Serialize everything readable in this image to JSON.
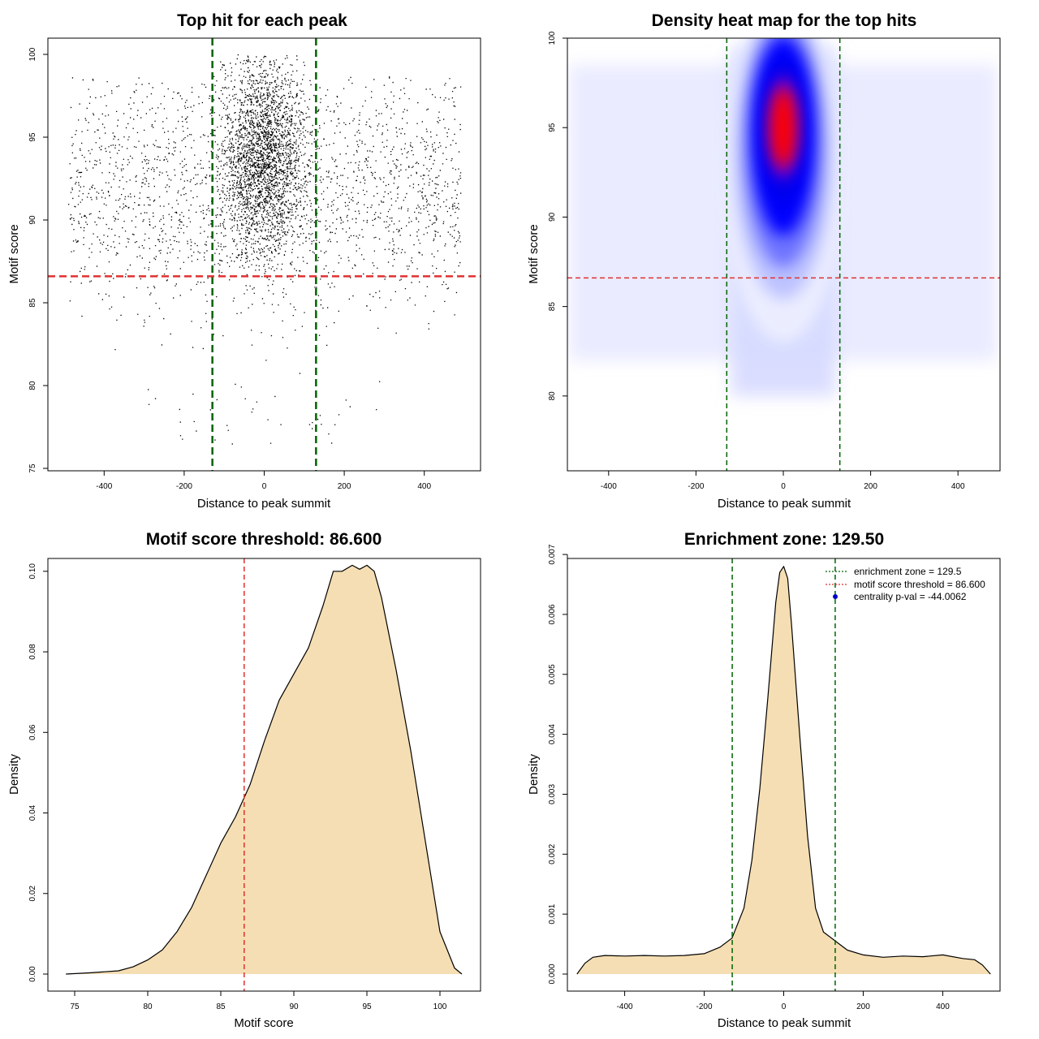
{
  "chart_data": [
    {
      "id": "scatter",
      "type": "scatter",
      "title": "Top hit for each peak",
      "xlabel": "Distance to peak summit",
      "ylabel": "Motif score",
      "xlim": [
        -500,
        500
      ],
      "ylim": [
        75,
        100
      ],
      "xticks": [
        -400,
        -200,
        0,
        200,
        400
      ],
      "yticks": [
        75,
        80,
        85,
        90,
        95,
        100
      ],
      "xtick_labels": [
        "-400",
        "-200",
        "0",
        "200",
        "400"
      ],
      "ytick_labels": [
        "75",
        "80",
        "85",
        "90",
        "95",
        "100"
      ],
      "point_color": "#000000",
      "vlines": [
        -129.5,
        129.5
      ],
      "hline": 86.6,
      "vline_color": "#006400",
      "hline_color": "#e03030"
    },
    {
      "id": "heatmap",
      "type": "heatmap",
      "title": "Density heat map for the top hits",
      "xlabel": "Distance to peak summit",
      "ylabel": "Motif score",
      "xlim": [
        -500,
        500
      ],
      "ylim": [
        76,
        100
      ],
      "xticks": [
        -400,
        -200,
        0,
        200,
        400
      ],
      "yticks": [
        80,
        85,
        90,
        95,
        100
      ],
      "xtick_labels": [
        "-400",
        "-200",
        "0",
        "200",
        "400"
      ],
      "ytick_labels": [
        "80",
        "85",
        "90",
        "95",
        "100"
      ],
      "vlines": [
        -129.5,
        129.5
      ],
      "hline": 86.6,
      "hot_spot": {
        "x": 0,
        "y": 95
      },
      "colors": [
        "#ffffff",
        "#0000ff",
        "#ff0000"
      ],
      "vline_color": "#006400",
      "hline_color": "#e03030"
    },
    {
      "id": "density_score",
      "type": "area",
      "title": "Motif score threshold: 86.600",
      "xlabel": "Motif score",
      "ylabel": "Density",
      "xlim": [
        74,
        102
      ],
      "ylim": [
        0,
        0.105
      ],
      "xticks": [
        75,
        80,
        85,
        90,
        95,
        100
      ],
      "yticks": [
        0,
        0.02,
        0.04,
        0.06,
        0.08,
        0.1
      ],
      "xtick_labels": [
        "75",
        "80",
        "85",
        "90",
        "95",
        "100"
      ],
      "ytick_labels": [
        "0.00",
        "0.02",
        "0.04",
        "0.06",
        "0.08",
        "0.10"
      ],
      "x": [
        74.4,
        76,
        78,
        79,
        80,
        81,
        82,
        83,
        84,
        85,
        86,
        87,
        88,
        89,
        90,
        91,
        92,
        92.7,
        93.3,
        94,
        94.5,
        95,
        95.5,
        96,
        97,
        98,
        99,
        100,
        101,
        101.5
      ],
      "y": [
        0.0,
        0.0003,
        0.0008,
        0.0018,
        0.0035,
        0.006,
        0.0105,
        0.0165,
        0.0245,
        0.0325,
        0.039,
        0.047,
        0.058,
        0.068,
        0.0745,
        0.081,
        0.0915,
        0.1,
        0.1,
        0.1015,
        0.1005,
        0.1015,
        0.1,
        0.0935,
        0.0755,
        0.0555,
        0.033,
        0.0105,
        0.0015,
        0.0
      ],
      "vline": 86.6,
      "fill": "#f5deb3",
      "line_color": "#000000",
      "vline_color": "#e03030"
    },
    {
      "id": "density_dist",
      "type": "area",
      "title": "Enrichment zone: 129.50",
      "xlabel": "Distance to peak summit",
      "ylabel": "Density",
      "xlim": [
        -540,
        540
      ],
      "ylim": [
        0,
        0.00715
      ],
      "xticks": [
        -400,
        -200,
        0,
        200,
        400
      ],
      "yticks": [
        0,
        0.001,
        0.002,
        0.003,
        0.004,
        0.005,
        0.006,
        0.007
      ],
      "xtick_labels": [
        "-400",
        "-200",
        "0",
        "200",
        "400"
      ],
      "ytick_labels": [
        "0.000",
        "0.001",
        "0.002",
        "0.003",
        "0.004",
        "0.005",
        "0.006",
        "0.007"
      ],
      "x": [
        -520,
        -500,
        -480,
        -450,
        -400,
        -350,
        -300,
        -250,
        -200,
        -160,
        -130,
        -100,
        -80,
        -60,
        -40,
        -20,
        -10,
        0,
        10,
        20,
        40,
        60,
        80,
        100,
        130,
        160,
        200,
        250,
        300,
        350,
        400,
        450,
        480,
        500,
        520
      ],
      "y": [
        0.0,
        0.00018,
        0.00028,
        0.00031,
        0.0003,
        0.00031,
        0.0003,
        0.00031,
        0.00034,
        0.00045,
        0.0006,
        0.0011,
        0.0019,
        0.0031,
        0.0046,
        0.0062,
        0.0067,
        0.0068,
        0.0066,
        0.0058,
        0.004,
        0.0023,
        0.0011,
        0.0007,
        0.00055,
        0.0004,
        0.00032,
        0.00028,
        0.0003,
        0.00029,
        0.00032,
        0.00026,
        0.00024,
        0.00015,
        0.0
      ],
      "vlines": [
        -129.5,
        129.5
      ],
      "fill": "#f5deb3",
      "line_color": "#000000",
      "vline_color": "#006400",
      "legend": {
        "position": "top-right",
        "entries": [
          {
            "label": "enrichment zone = 129.5",
            "style": "line",
            "color": "#006400"
          },
          {
            "label": "motif score threshold = 86.600",
            "style": "line",
            "color": "#e03030"
          },
          {
            "label": "centrality p-val = -44.0062",
            "style": "point",
            "color": "#0000cc"
          }
        ]
      }
    }
  ]
}
